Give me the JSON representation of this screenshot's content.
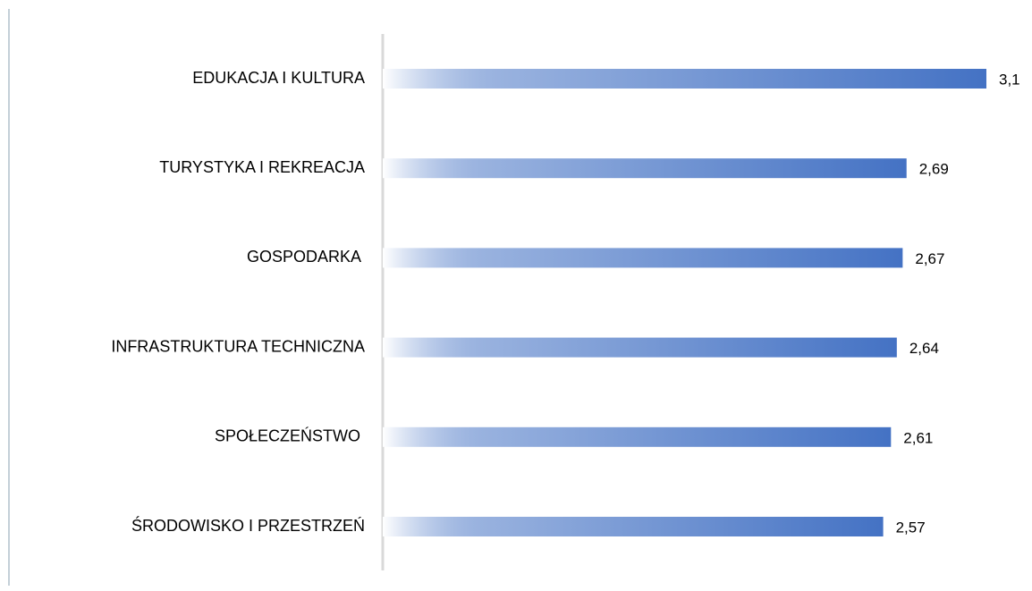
{
  "chart_data": {
    "type": "barh",
    "categories": [
      "EDUKACJA I KULTURA",
      "TURYSTYKA I REKREACJA",
      "GOSPODARKA ",
      "INFRASTRUKTURA TECHNICZNA",
      "SPOŁECZEŃSTWO ",
      "ŚRODOWISKO I PRZESTRZEŃ"
    ],
    "values": [
      3.1,
      2.69,
      2.67,
      2.64,
      2.61,
      2.57
    ],
    "value_labels": [
      "3,1",
      "2,69",
      "2,67",
      "2,64",
      "2,61",
      "2,57"
    ],
    "color": "#4472c4",
    "xlim": [
      0,
      3.1
    ]
  }
}
